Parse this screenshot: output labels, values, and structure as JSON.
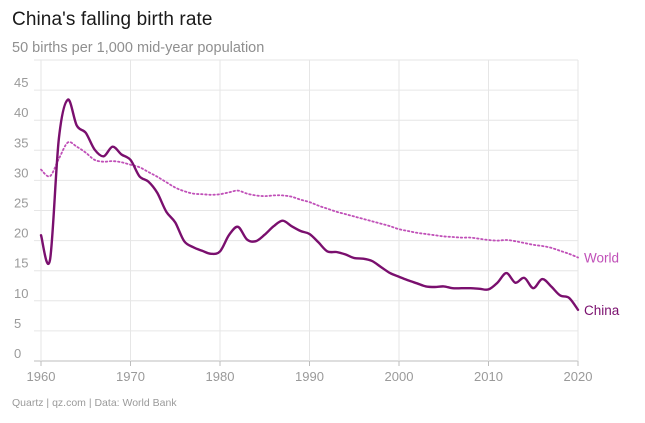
{
  "header": {
    "title": "China's falling birth rate",
    "subtitle": "50 births per 1,000 mid-year population"
  },
  "footer": {
    "source": "Quartz | qz.com | Data: World Bank"
  },
  "colors": {
    "china": "#7a0f6e",
    "world": "#c050b8",
    "grid": "#e6e6e6",
    "axis": "#bdbdbd"
  },
  "chart_data": {
    "type": "line",
    "title": "China's falling birth rate",
    "subtitle": "50 births per 1,000 mid-year population",
    "xlabel": "",
    "ylabel": "",
    "xlim": [
      1960,
      2020
    ],
    "ylim": [
      0,
      50
    ],
    "x_ticks": [
      1960,
      1970,
      1980,
      1990,
      2000,
      2010,
      2020
    ],
    "y_ticks": [
      0,
      5,
      10,
      15,
      20,
      25,
      30,
      35,
      40,
      45
    ],
    "grid": true,
    "series": [
      {
        "name": "World",
        "style": "dotted",
        "label_text": "World",
        "x": [
          1960,
          1961,
          1962,
          1963,
          1964,
          1965,
          1966,
          1967,
          1968,
          1969,
          1970,
          1971,
          1972,
          1973,
          1974,
          1975,
          1976,
          1977,
          1978,
          1979,
          1980,
          1981,
          1982,
          1983,
          1984,
          1985,
          1986,
          1987,
          1988,
          1989,
          1990,
          1991,
          1992,
          1993,
          1994,
          1995,
          1996,
          1997,
          1998,
          1999,
          2000,
          2001,
          2002,
          2003,
          2004,
          2005,
          2006,
          2007,
          2008,
          2009,
          2010,
          2011,
          2012,
          2013,
          2014,
          2015,
          2016,
          2017,
          2018,
          2019,
          2020
        ],
        "values": [
          31.8,
          30.7,
          33.6,
          36.3,
          35.6,
          34.6,
          33.4,
          33.1,
          33.2,
          33.0,
          32.6,
          32.2,
          31.4,
          30.6,
          29.7,
          28.8,
          28.2,
          27.8,
          27.7,
          27.6,
          27.7,
          28.0,
          28.3,
          27.8,
          27.5,
          27.4,
          27.5,
          27.5,
          27.3,
          26.8,
          26.4,
          25.8,
          25.3,
          24.8,
          24.4,
          24.0,
          23.6,
          23.2,
          22.8,
          22.4,
          21.9,
          21.6,
          21.3,
          21.1,
          20.9,
          20.7,
          20.6,
          20.5,
          20.5,
          20.3,
          20.1,
          20.0,
          20.1,
          19.9,
          19.6,
          19.3,
          19.1,
          18.8,
          18.3,
          17.8,
          17.2
        ]
      },
      {
        "name": "China",
        "style": "solid",
        "label_text": "China",
        "x": [
          1960,
          1961,
          1962,
          1963,
          1964,
          1965,
          1966,
          1967,
          1968,
          1969,
          1970,
          1971,
          1972,
          1973,
          1974,
          1975,
          1976,
          1977,
          1978,
          1979,
          1980,
          1981,
          1982,
          1983,
          1984,
          1985,
          1986,
          1987,
          1988,
          1989,
          1990,
          1991,
          1992,
          1993,
          1994,
          1995,
          1996,
          1997,
          1998,
          1999,
          2000,
          2001,
          2002,
          2003,
          2004,
          2005,
          2006,
          2007,
          2008,
          2009,
          2010,
          2011,
          2012,
          2013,
          2014,
          2015,
          2016,
          2017,
          2018,
          2019,
          2020
        ],
        "values": [
          20.9,
          16.8,
          37.0,
          43.4,
          39.1,
          37.9,
          35.1,
          34.0,
          35.6,
          34.3,
          33.4,
          30.7,
          29.8,
          27.9,
          24.8,
          23.0,
          19.9,
          18.9,
          18.3,
          17.8,
          18.2,
          20.9,
          22.3,
          20.2,
          19.9,
          21.0,
          22.4,
          23.3,
          22.4,
          21.6,
          21.1,
          19.7,
          18.2,
          18.1,
          17.7,
          17.1,
          17.0,
          16.6,
          15.6,
          14.6,
          14.0,
          13.4,
          12.9,
          12.4,
          12.3,
          12.4,
          12.1,
          12.1,
          12.1,
          12.0,
          11.9,
          13.0,
          14.6,
          13.0,
          13.8,
          12.1,
          13.6,
          12.4,
          10.9,
          10.5,
          8.5
        ]
      }
    ]
  }
}
